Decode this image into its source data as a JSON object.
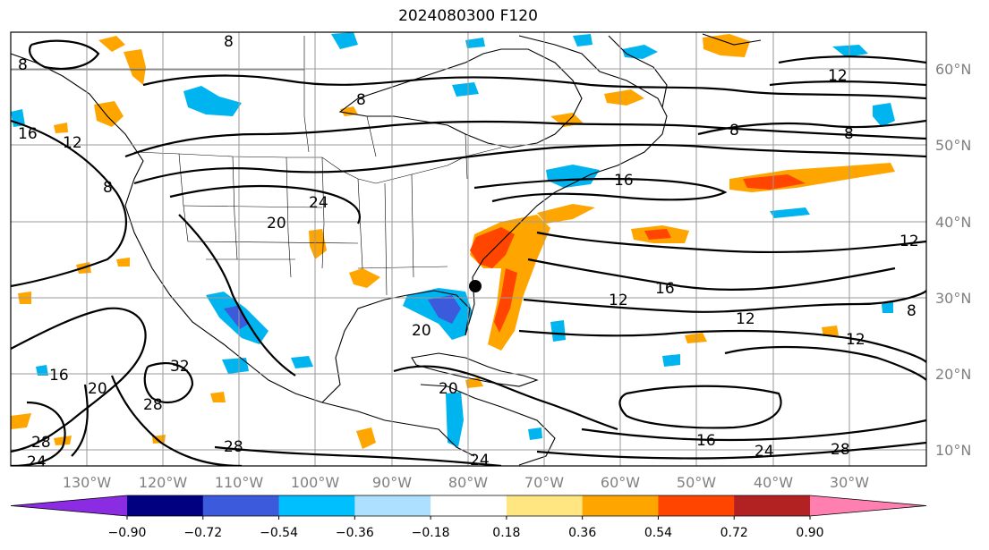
{
  "title": "2024080300 F120",
  "map": {
    "lat_labels": [
      "60°N",
      "50°N",
      "40°N",
      "30°N",
      "20°N",
      "10°N"
    ],
    "lon_labels": [
      "130°W",
      "120°W",
      "110°W",
      "100°W",
      "90°W",
      "80°W",
      "70°W",
      "60°W",
      "50°W",
      "40°W",
      "30°W"
    ],
    "contour_labels": [
      "8",
      "8",
      "12",
      "8",
      "8",
      "16",
      "8",
      "24",
      "8",
      "20",
      "16",
      "12",
      "12",
      "16",
      "12",
      "12",
      "8",
      "16",
      "20",
      "32",
      "28",
      "20",
      "28",
      "28",
      "24",
      "20",
      "16",
      "24",
      "28",
      "12",
      "24"
    ],
    "fill_colors": {
      "positive_low": "#ffe680",
      "positive_mid": "#ffa500",
      "positive_high": "#ff4500",
      "negative_low": "#a8dcff",
      "negative_mid": "#00b4f0",
      "negative_high": "#3c5adc"
    }
  },
  "colorbar": {
    "colors": [
      "#8b2be2",
      "#000080",
      "#3c5adc",
      "#00bfff",
      "#ade0ff",
      "#ffffff",
      "#ffe680",
      "#ffa500",
      "#ff4500",
      "#b22222",
      "#ff80b0"
    ],
    "tick_labels": [
      "−0.90",
      "−0.72",
      "−0.54",
      "−0.36",
      "−0.18",
      "0.18",
      "0.36",
      "0.54",
      "0.72",
      "0.90"
    ]
  }
}
